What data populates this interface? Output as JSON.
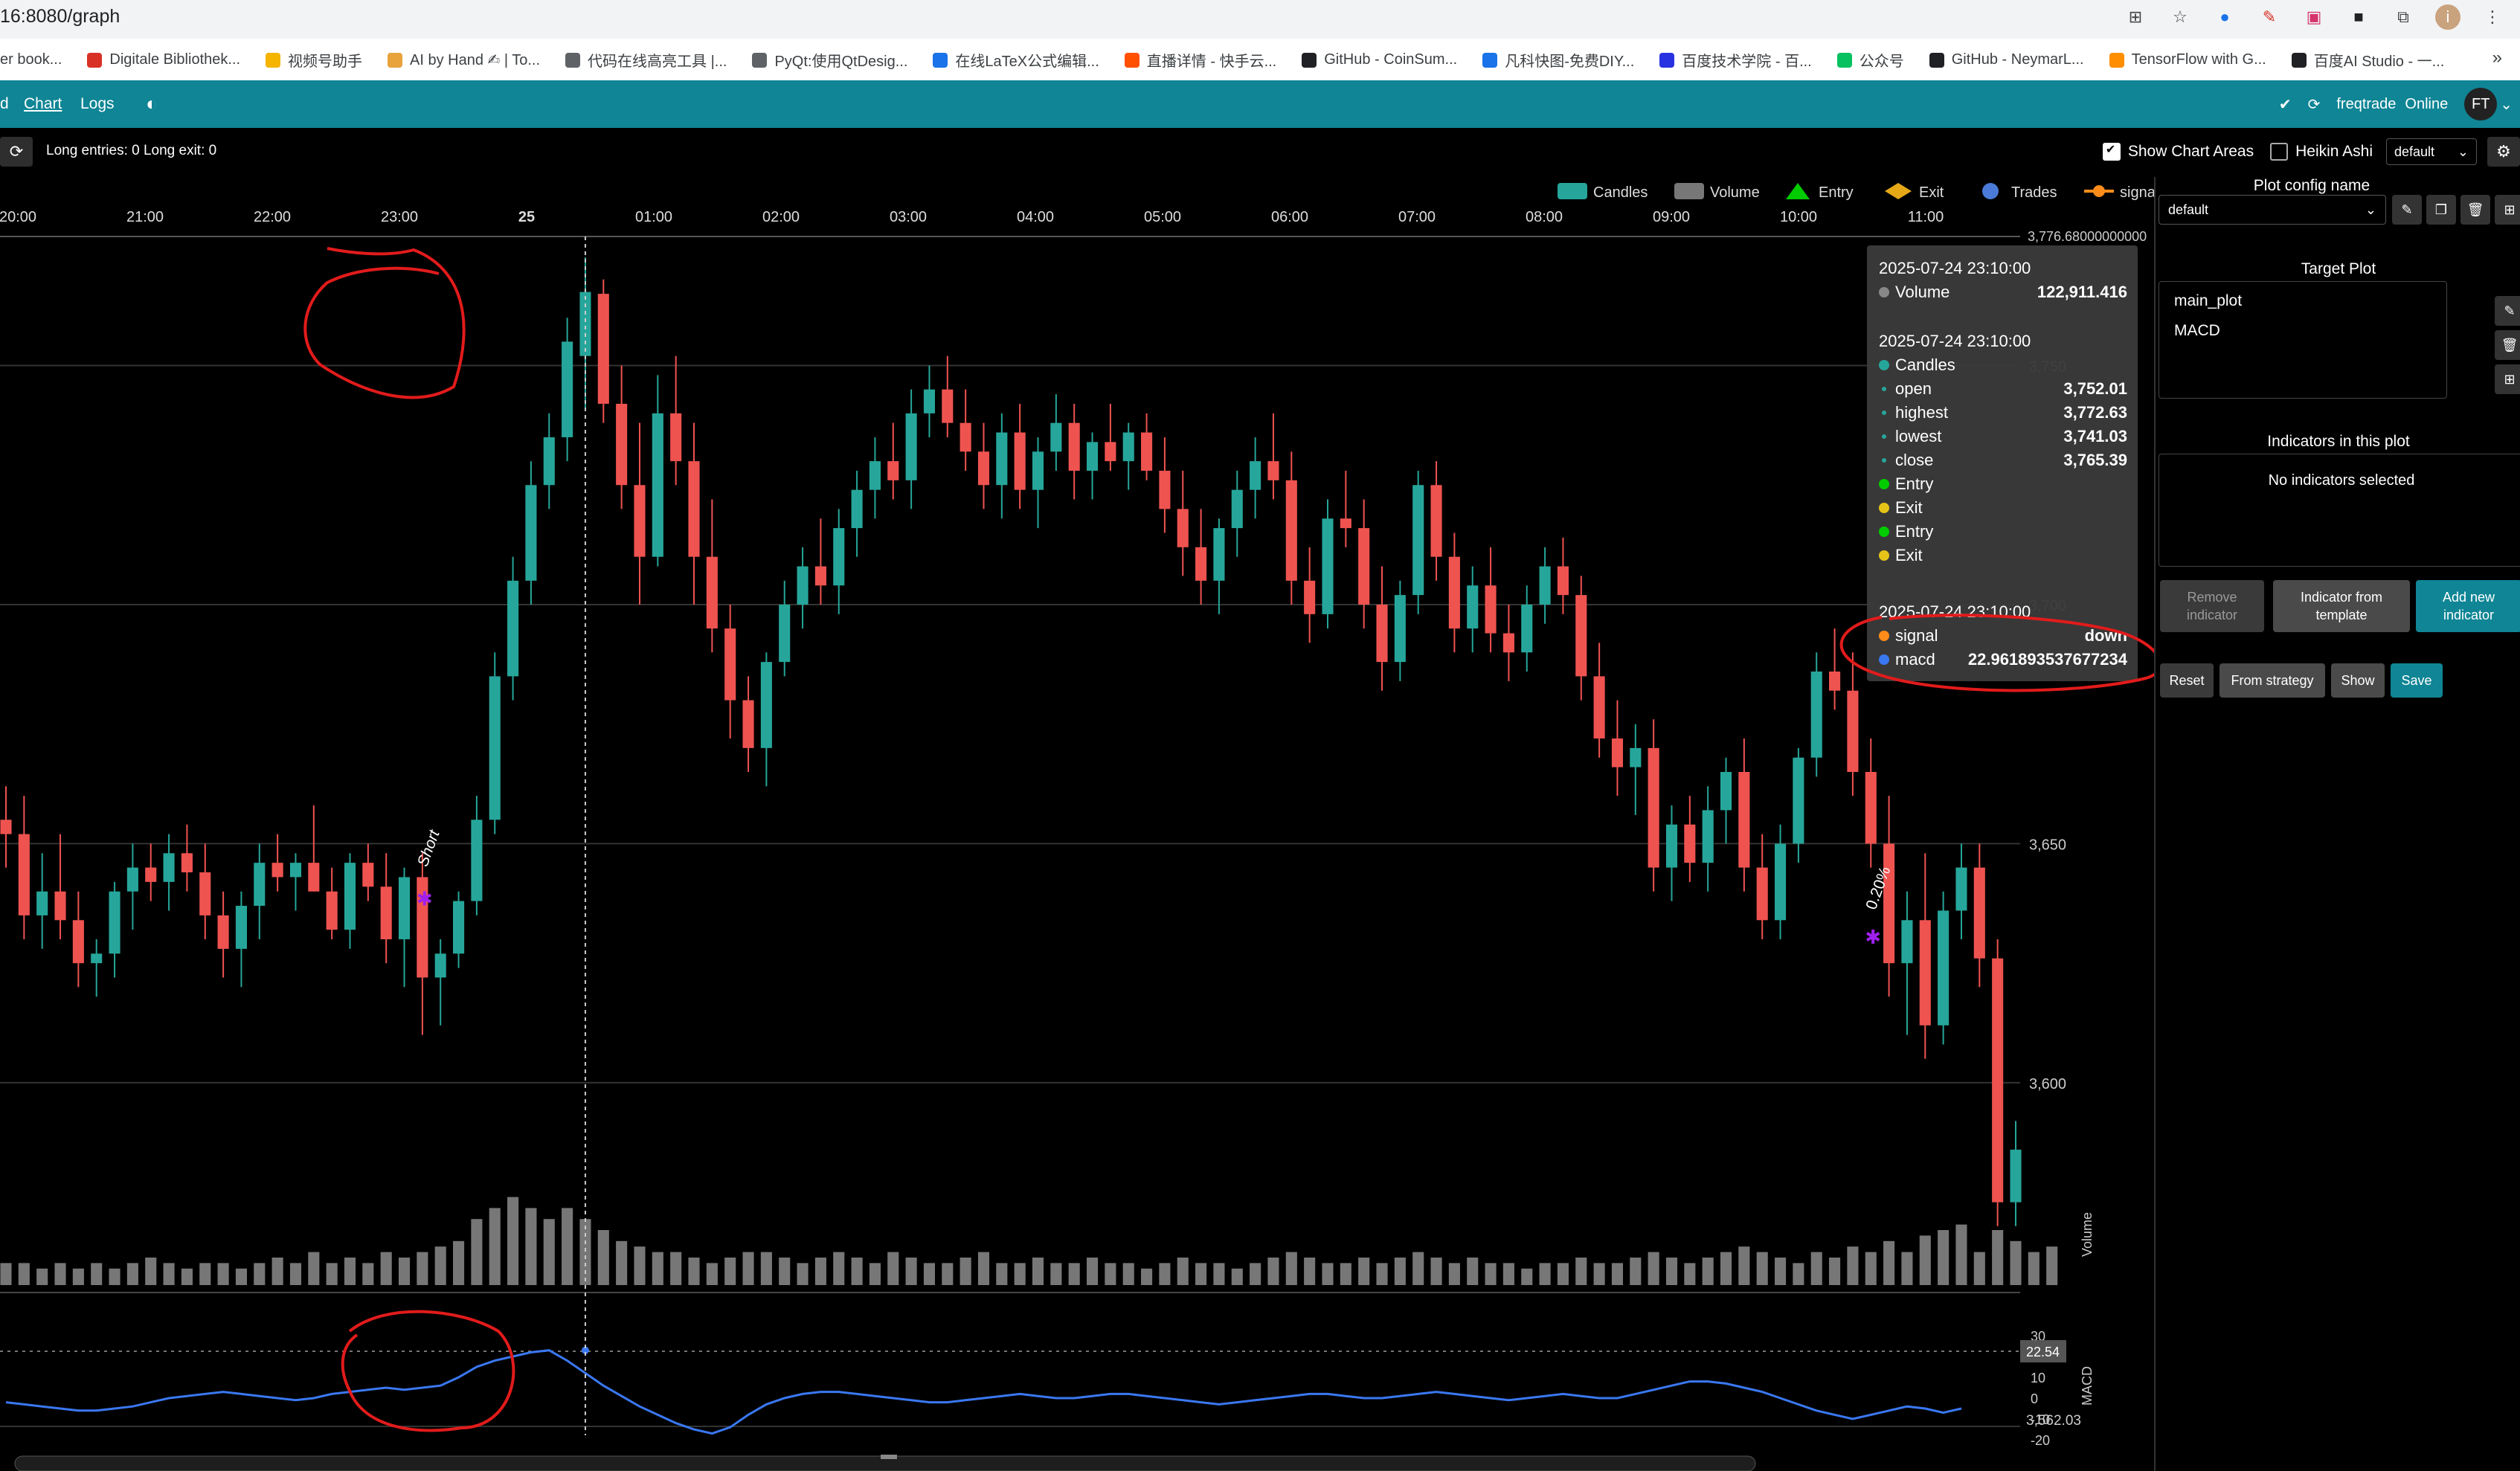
{
  "browser": {
    "url": "16:8080/graph",
    "bookmarks": [
      {
        "label": "er book...",
        "color": "#888888"
      },
      {
        "label": "Digitale Bibliothek...",
        "color": "#d93025"
      },
      {
        "label": "视频号助手",
        "color": "#f4b400"
      },
      {
        "label": "AI by Hand ✍ | To...",
        "color": "#e8a33d"
      },
      {
        "label": "代码在线高亮工具 |...",
        "color": "#5f6368"
      },
      {
        "label": "PyQt:使用QtDesig...",
        "color": "#5f6368"
      },
      {
        "label": "在线LaTeX公式编辑...",
        "color": "#1a73e8"
      },
      {
        "label": "直播详情 - 快手云...",
        "color": "#ff5000"
      },
      {
        "label": "GitHub - CoinSum...",
        "color": "#202124"
      },
      {
        "label": "凡科快图-免费DIY...",
        "color": "#1a73e8"
      },
      {
        "label": "百度技术学院 - 百...",
        "color": "#2932e1"
      },
      {
        "label": "公众号",
        "color": "#07c160"
      },
      {
        "label": "GitHub - NeymarL...",
        "color": "#202124"
      },
      {
        "label": "TensorFlow with G...",
        "color": "#ff8f00"
      },
      {
        "label": "百度AI Studio - 一...",
        "color": "#202124"
      }
    ],
    "more": "»"
  },
  "nav": {
    "chart": "Chart",
    "logs": "Logs",
    "bot_name": "freqtrade",
    "status": "Online",
    "avatar": "FT"
  },
  "toolbar": {
    "entries": "Long entries: 0   Long exit: 0",
    "show_chart_areas": "Show Chart Areas",
    "heikin_ashi": "Heikin Ashi",
    "config": "default"
  },
  "legend": [
    {
      "label": "Candles",
      "color": "#26a69a",
      "shape": "rect"
    },
    {
      "label": "Volume",
      "color": "#777777",
      "shape": "rect"
    },
    {
      "label": "Entry",
      "color": "#00cc00",
      "shape": "triangle"
    },
    {
      "label": "Exit",
      "color": "#e6a817",
      "shape": "diamond"
    },
    {
      "label": "Trades",
      "color": "#4a7bd8",
      "shape": "circle"
    },
    {
      "label": "signal",
      "color": "#ff8c1a",
      "shape": "line"
    },
    {
      "label": "macd",
      "color": "#3a78f2",
      "shape": "line"
    }
  ],
  "axes": {
    "time_labels": [
      "20:00",
      "21:00",
      "22:00",
      "23:00",
      "25",
      "01:00",
      "02:00",
      "03:00",
      "04:00",
      "05:00",
      "06:00",
      "07:00",
      "08:00",
      "09:00",
      "10:00",
      "11:00"
    ],
    "top_value": "3,776.68000000000",
    "price_labels": [
      "3,750",
      "3,700",
      "3,650",
      "3,600",
      "3,562.03"
    ],
    "volume_label": "Volume",
    "macd_labels": [
      "30",
      "10",
      "0",
      "-10",
      "-20"
    ],
    "macd_current": "22.54",
    "macd_axis_label": "MACD"
  },
  "markers": {
    "short": "Short",
    "exit_pct": "0.20%"
  },
  "chart_data": {
    "type": "candlestick",
    "price_range": [
      3562.03,
      3776.68
    ],
    "grid": true,
    "legend": "top-right",
    "candles": [
      [
        3655,
        3662,
        3645,
        3652
      ],
      [
        3652,
        3660,
        3630,
        3635
      ],
      [
        3635,
        3648,
        3628,
        3640
      ],
      [
        3640,
        3652,
        3630,
        3634
      ],
      [
        3634,
        3640,
        3620,
        3625
      ],
      [
        3625,
        3630,
        3618,
        3627
      ],
      [
        3627,
        3642,
        3622,
        3640
      ],
      [
        3640,
        3650,
        3632,
        3645
      ],
      [
        3645,
        3650,
        3638,
        3642
      ],
      [
        3642,
        3652,
        3636,
        3648
      ],
      [
        3648,
        3654,
        3640,
        3644
      ],
      [
        3644,
        3650,
        3630,
        3635
      ],
      [
        3635,
        3640,
        3622,
        3628
      ],
      [
        3628,
        3640,
        3620,
        3637
      ],
      [
        3637,
        3650,
        3630,
        3646
      ],
      [
        3646,
        3652,
        3640,
        3643
      ],
      [
        3643,
        3648,
        3636,
        3646
      ],
      [
        3646,
        3658,
        3640,
        3640
      ],
      [
        3640,
        3645,
        3630,
        3632
      ],
      [
        3632,
        3648,
        3628,
        3646
      ],
      [
        3646,
        3650,
        3638,
        3641
      ],
      [
        3641,
        3648,
        3625,
        3630
      ],
      [
        3630,
        3645,
        3620,
        3643
      ],
      [
        3643,
        3648,
        3610,
        3622
      ],
      [
        3622,
        3630,
        3612,
        3627
      ],
      [
        3627,
        3640,
        3624,
        3638
      ],
      [
        3638,
        3660,
        3635,
        3655
      ],
      [
        3655,
        3690,
        3652,
        3685
      ],
      [
        3685,
        3710,
        3680,
        3705
      ],
      [
        3705,
        3730,
        3700,
        3725
      ],
      [
        3725,
        3740,
        3720,
        3735
      ],
      [
        3735,
        3760,
        3730,
        3755
      ],
      [
        3752,
        3772.63,
        3741.03,
        3765.39
      ],
      [
        3765,
        3768,
        3738,
        3742
      ],
      [
        3742,
        3750,
        3720,
        3725
      ],
      [
        3725,
        3738,
        3700,
        3710
      ],
      [
        3710,
        3748,
        3708,
        3740
      ],
      [
        3740,
        3752,
        3725,
        3730
      ],
      [
        3730,
        3738,
        3700,
        3710
      ],
      [
        3710,
        3722,
        3690,
        3695
      ],
      [
        3695,
        3700,
        3672,
        3680
      ],
      [
        3680,
        3685,
        3665,
        3670
      ],
      [
        3670,
        3690,
        3662,
        3688
      ],
      [
        3688,
        3705,
        3685,
        3700
      ],
      [
        3700,
        3712,
        3695,
        3708
      ],
      [
        3708,
        3718,
        3700,
        3704
      ],
      [
        3704,
        3720,
        3698,
        3716
      ],
      [
        3716,
        3728,
        3710,
        3724
      ],
      [
        3724,
        3735,
        3718,
        3730
      ],
      [
        3730,
        3738,
        3722,
        3726
      ],
      [
        3726,
        3745,
        3720,
        3740
      ],
      [
        3740,
        3750,
        3735,
        3745
      ],
      [
        3745,
        3752,
        3735,
        3738
      ],
      [
        3738,
        3745,
        3728,
        3732
      ],
      [
        3732,
        3738,
        3720,
        3725
      ],
      [
        3725,
        3740,
        3718,
        3736
      ],
      [
        3736,
        3742,
        3720,
        3724
      ],
      [
        3724,
        3735,
        3716,
        3732
      ],
      [
        3732,
        3744,
        3728,
        3738
      ],
      [
        3738,
        3742,
        3722,
        3728
      ],
      [
        3728,
        3736,
        3722,
        3734
      ],
      [
        3734,
        3742,
        3728,
        3730
      ],
      [
        3730,
        3738,
        3724,
        3736
      ],
      [
        3736,
        3740,
        3726,
        3728
      ],
      [
        3728,
        3735,
        3715,
        3720
      ],
      [
        3720,
        3728,
        3706,
        3712
      ],
      [
        3712,
        3720,
        3700,
        3705
      ],
      [
        3705,
        3718,
        3698,
        3716
      ],
      [
        3716,
        3728,
        3710,
        3724
      ],
      [
        3724,
        3735,
        3718,
        3730
      ],
      [
        3730,
        3740,
        3722,
        3726
      ],
      [
        3726,
        3732,
        3700,
        3705
      ],
      [
        3705,
        3712,
        3692,
        3698
      ],
      [
        3698,
        3722,
        3695,
        3718
      ],
      [
        3718,
        3728,
        3712,
        3716
      ],
      [
        3716,
        3722,
        3695,
        3700
      ],
      [
        3700,
        3708,
        3682,
        3688
      ],
      [
        3688,
        3705,
        3684,
        3702
      ],
      [
        3702,
        3728,
        3698,
        3725
      ],
      [
        3725,
        3730,
        3705,
        3710
      ],
      [
        3710,
        3715,
        3690,
        3695
      ],
      [
        3695,
        3708,
        3690,
        3704
      ],
      [
        3704,
        3712,
        3690,
        3694
      ],
      [
        3694,
        3700,
        3684,
        3690
      ],
      [
        3690,
        3704,
        3686,
        3700
      ],
      [
        3700,
        3712,
        3696,
        3708
      ],
      [
        3708,
        3714,
        3698,
        3702
      ],
      [
        3702,
        3706,
        3680,
        3685
      ],
      [
        3685,
        3692,
        3668,
        3672
      ],
      [
        3672,
        3680,
        3660,
        3666
      ],
      [
        3666,
        3675,
        3656,
        3670
      ],
      [
        3670,
        3676,
        3640,
        3645
      ],
      [
        3645,
        3658,
        3638,
        3654
      ],
      [
        3654,
        3660,
        3642,
        3646
      ],
      [
        3646,
        3662,
        3640,
        3657
      ],
      [
        3657,
        3668,
        3650,
        3665
      ],
      [
        3665,
        3672,
        3640,
        3645
      ],
      [
        3645,
        3652,
        3630,
        3634
      ],
      [
        3634,
        3654,
        3630,
        3650
      ],
      [
        3650,
        3670,
        3646,
        3668
      ],
      [
        3668,
        3690,
        3664,
        3686
      ],
      [
        3686,
        3695,
        3678,
        3682
      ],
      [
        3682,
        3690,
        3660,
        3665
      ],
      [
        3665,
        3672,
        3645,
        3650
      ],
      [
        3650,
        3660,
        3618,
        3625
      ],
      [
        3625,
        3640,
        3610,
        3634
      ],
      [
        3634,
        3648,
        3605,
        3612
      ],
      [
        3612,
        3640,
        3608,
        3636
      ],
      [
        3636,
        3650,
        3630,
        3645
      ],
      [
        3645,
        3650,
        3620,
        3626
      ],
      [
        3626,
        3630,
        3570,
        3575
      ],
      [
        3575,
        3592,
        3570,
        3586
      ]
    ],
    "volume_range": [
      0,
      10
    ],
    "volume": [
      2,
      2,
      1.5,
      2,
      1.5,
      2,
      1.5,
      2,
      2.5,
      2,
      1.5,
      2,
      2,
      1.5,
      2,
      2.5,
      2,
      3,
      2,
      2.5,
      2,
      3,
      2.5,
      3,
      3.5,
      4,
      6,
      7,
      8,
      7,
      6,
      7,
      6,
      5,
      4,
      3.5,
      3,
      3,
      2.5,
      2,
      2.5,
      3,
      3,
      2.5,
      2,
      2.5,
      3,
      2.5,
      2,
      3,
      2.5,
      2,
      2,
      2.5,
      3,
      2,
      2,
      2.5,
      2,
      2,
      2.5,
      2,
      2,
      1.5,
      2,
      2.5,
      2,
      2,
      1.5,
      2,
      2.5,
      3,
      2.5,
      2,
      2,
      2.5,
      2,
      2.5,
      3,
      2.5,
      2,
      2.5,
      2,
      2,
      1.5,
      2,
      2,
      2.5,
      2,
      2,
      2.5,
      3,
      2.5,
      2,
      2.5,
      3,
      3.5,
      3,
      2.5,
      2,
      3,
      2.5,
      3.5,
      3,
      4,
      3,
      4.5,
      5,
      5.5,
      3,
      5,
      4,
      3,
      3.5
    ],
    "macd_range": [
      -20,
      30
    ],
    "macd": [
      -2,
      -3,
      -4,
      -5,
      -6,
      -6,
      -5,
      -4,
      -2,
      0,
      1,
      2,
      3,
      2,
      1,
      0,
      -1,
      0,
      2,
      3,
      4,
      5,
      4,
      5,
      6,
      10,
      15,
      18,
      20,
      22,
      22.96,
      18,
      12,
      6,
      1,
      -4,
      -8,
      -12,
      -15,
      -17,
      -14,
      -8,
      -3,
      0,
      2,
      3,
      3,
      2,
      1,
      0,
      -1,
      -2,
      -2,
      -1,
      0,
      1,
      2,
      1,
      0,
      0,
      1,
      2,
      2,
      1,
      0,
      -1,
      -2,
      -3,
      -2,
      -1,
      0,
      1,
      2,
      2,
      1,
      0,
      0,
      1,
      2,
      3,
      2,
      1,
      0,
      -1,
      0,
      1,
      2,
      1,
      0,
      0,
      2,
      4,
      6,
      8,
      8,
      7,
      5,
      3,
      0,
      -3,
      -6,
      -8,
      -10,
      -8,
      -6,
      -4,
      -5,
      -7,
      -5
    ]
  },
  "tooltip": {
    "volume_time": "2025-07-24 23:10:00",
    "volume_label": "Volume",
    "volume_value": "122,911.416",
    "candle_time": "2025-07-24 23:10:00",
    "candles_label": "Candles",
    "rows": [
      {
        "name": "open",
        "value": "3,752.01"
      },
      {
        "name": "highest",
        "value": "3,772.63"
      },
      {
        "name": "lowest",
        "value": "3,741.03"
      },
      {
        "name": "close",
        "value": "3,765.39"
      }
    ],
    "entries": [
      {
        "name": "Entry",
        "color": "#00cc00"
      },
      {
        "name": "Exit",
        "color": "#e6c417"
      },
      {
        "name": "Entry",
        "color": "#00cc00"
      },
      {
        "name": "Exit",
        "color": "#e6c417"
      }
    ],
    "macd_time": "2025-07-24 23:10:00",
    "signal_label": "signal",
    "signal_value": "down",
    "macd_label": "macd",
    "macd_value": "22.961893537677234"
  },
  "panel": {
    "plot_config_name": "Plot config name",
    "plot_config_value": "default",
    "target_plot": "Target Plot",
    "targets": [
      "main_plot",
      "MACD"
    ],
    "indicators_title": "Indicators in this plot",
    "no_indicators": "No indicators selected",
    "remove_indicator": "Remove indicator",
    "indicator_template": "Indicator from template",
    "add_indicator": "Add new indicator",
    "reset": "Reset",
    "from_strategy": "From strategy",
    "show": "Show",
    "save": "Save"
  },
  "colors": {
    "up": "#26a69a",
    "down": "#ef5350",
    "nav": "#0f8595",
    "annotation": "#e21b1b",
    "macd": "#3a78f2",
    "marker": "#a020f0"
  }
}
